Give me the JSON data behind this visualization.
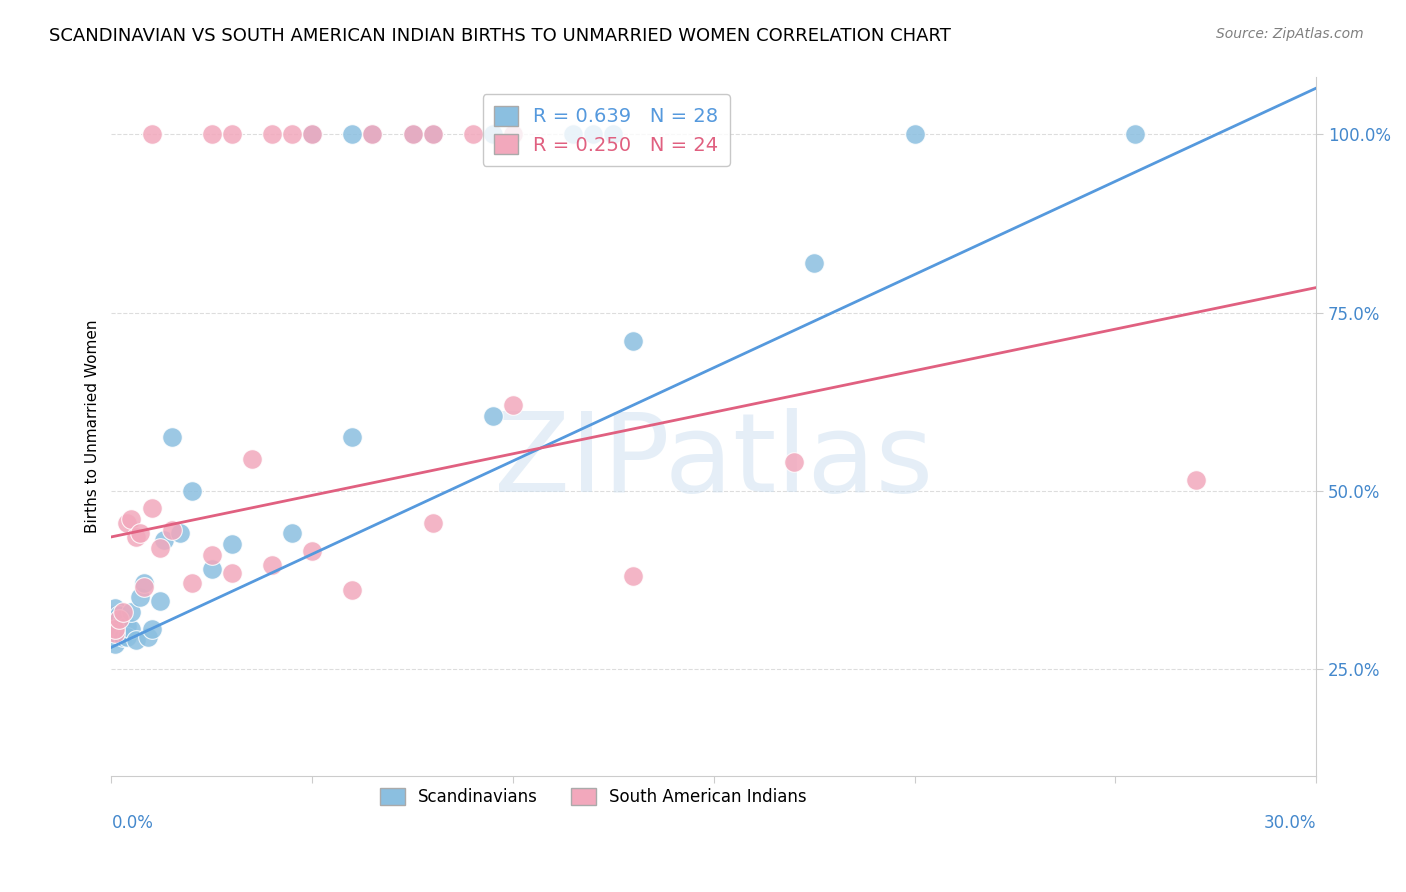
{
  "title": "SCANDINAVIAN VS SOUTH AMERICAN INDIAN BIRTHS TO UNMARRIED WOMEN CORRELATION CHART",
  "source": "Source: ZipAtlas.com",
  "ylabel": "Births to Unmarried Women",
  "xlim": [
    0.0,
    0.3
  ],
  "ylim": [
    0.1,
    1.08
  ],
  "blue_R": 0.639,
  "blue_N": 28,
  "pink_R": 0.25,
  "pink_N": 24,
  "blue_color": "#8bbfe0",
  "pink_color": "#f2a8bc",
  "blue_line_color": "#5599dd",
  "pink_line_color": "#e06080",
  "watermark": "ZIPatlas",
  "blue_scatter_x": [
    0.001,
    0.001,
    0.002,
    0.002,
    0.003,
    0.003,
    0.004,
    0.004,
    0.005,
    0.005,
    0.006,
    0.007,
    0.008,
    0.009,
    0.01,
    0.012,
    0.013,
    0.015,
    0.017,
    0.02,
    0.025,
    0.03,
    0.045,
    0.06,
    0.095,
    0.13,
    0.175,
    0.255
  ],
  "blue_scatter_y": [
    0.335,
    0.285,
    0.305,
    0.325,
    0.32,
    0.295,
    0.31,
    0.295,
    0.305,
    0.33,
    0.29,
    0.35,
    0.37,
    0.295,
    0.305,
    0.345,
    0.43,
    0.575,
    0.44,
    0.5,
    0.39,
    0.425,
    0.44,
    0.575,
    0.605,
    0.71,
    0.82,
    1.0
  ],
  "pink_scatter_x": [
    0.001,
    0.001,
    0.002,
    0.003,
    0.004,
    0.005,
    0.006,
    0.007,
    0.008,
    0.01,
    0.012,
    0.015,
    0.02,
    0.025,
    0.03,
    0.035,
    0.04,
    0.05,
    0.06,
    0.08,
    0.1,
    0.13,
    0.17,
    0.27
  ],
  "pink_scatter_y": [
    0.3,
    0.305,
    0.32,
    0.33,
    0.455,
    0.46,
    0.435,
    0.44,
    0.365,
    0.475,
    0.42,
    0.445,
    0.37,
    0.41,
    0.385,
    0.545,
    0.395,
    0.415,
    0.36,
    0.455,
    0.62,
    0.38,
    0.54,
    0.515
  ],
  "pink_scatter_sizes_large": [
    0
  ],
  "blue_line_x": [
    0.0,
    0.3
  ],
  "blue_line_y": [
    0.28,
    1.065
  ],
  "pink_line_x": [
    0.0,
    0.3
  ],
  "pink_line_y": [
    0.435,
    0.785
  ],
  "top_blue_dots_x": [
    0.05,
    0.06,
    0.065,
    0.075,
    0.08,
    0.095,
    0.1,
    0.115,
    0.12,
    0.125,
    0.2
  ],
  "top_blue_dots_y": [
    1.0,
    1.0,
    1.0,
    1.0,
    1.0,
    1.0,
    1.0,
    1.0,
    1.0,
    1.0,
    1.0
  ],
  "top_pink_dots_x": [
    0.01,
    0.025,
    0.03,
    0.04,
    0.045,
    0.05,
    0.065,
    0.075,
    0.08,
    0.09,
    0.1
  ],
  "top_pink_dots_y": [
    1.0,
    1.0,
    1.0,
    1.0,
    1.0,
    1.0,
    1.0,
    1.0,
    1.0,
    1.0,
    1.0
  ],
  "grid_color": "#dddddd",
  "tick_color": "#4488cc",
  "title_fontsize": 13,
  "axis_label_fontsize": 11,
  "legend_fontsize": 14,
  "source_fontsize": 10,
  "dot_size": 200,
  "large_dot_size": 600
}
